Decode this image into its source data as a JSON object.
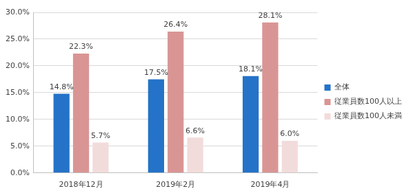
{
  "chart_data": {
    "type": "bar",
    "categories": [
      "2018年12月",
      "2019年2月",
      "2019年4月"
    ],
    "series": [
      {
        "name": "全体",
        "color": "#2473c8",
        "values": [
          14.8,
          17.5,
          18.1
        ],
        "value_labels": [
          "14.8%",
          "17.5%",
          "18.1%"
        ]
      },
      {
        "name": "従業員数100人以上",
        "color": "#d99594",
        "values": [
          22.3,
          26.4,
          28.1
        ],
        "value_labels": [
          "22.3%",
          "26.4%",
          "28.1%"
        ]
      },
      {
        "name": "従業員数100人未満",
        "color": "#f2dcdb",
        "values": [
          5.7,
          6.6,
          6.0
        ],
        "value_labels": [
          "5.7%",
          "6.6%",
          "6.0%"
        ]
      }
    ],
    "ylim": [
      0,
      30
    ],
    "yticks": [
      {
        "value": 0,
        "label": "0.0%"
      },
      {
        "value": 5,
        "label": "5.0%"
      },
      {
        "value": 10,
        "label": "10.0%"
      },
      {
        "value": 15,
        "label": "15.0%"
      },
      {
        "value": 20,
        "label": "20.0%"
      },
      {
        "value": 25,
        "label": "25.0%"
      },
      {
        "value": 30,
        "label": "30.0%"
      }
    ],
    "grid": true,
    "legend": "right",
    "data_labels": true
  }
}
